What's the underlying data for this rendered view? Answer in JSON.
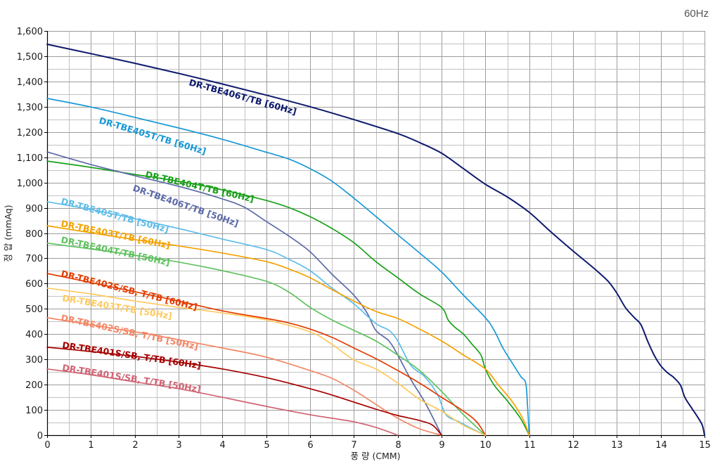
{
  "chart_data": {
    "type": "line",
    "title": "60Hz",
    "xlabel": "풍 량 (CMM)",
    "ylabel": "정 압 (mmAq)",
    "xlim": [
      0,
      15
    ],
    "ylim": [
      0,
      1600
    ],
    "grid": true,
    "x_ticks": [
      0,
      1,
      2,
      3,
      4,
      5,
      6,
      7,
      8,
      9,
      10,
      11,
      12,
      13,
      14,
      15
    ],
    "x_tick_labels": [
      "0",
      "1",
      "2",
      "3",
      "4",
      "5",
      "6",
      "7",
      "8",
      "9",
      "10",
      "11",
      "12",
      "13",
      "14",
      "15"
    ],
    "y_ticks": [
      0,
      100,
      200,
      300,
      400,
      500,
      600,
      700,
      800,
      900,
      1000,
      1100,
      1200,
      1300,
      1400,
      1500,
      1600
    ],
    "y_tick_labels": [
      "0",
      "100",
      "200",
      "300",
      "400",
      "500",
      "600",
      "700",
      "800",
      "900",
      "1,000",
      "1,100",
      "1,200",
      "1,300",
      "1,400",
      "1,500",
      "1,600"
    ],
    "series": [
      {
        "name": "DR-TBE406T/TB [60Hz]",
        "color": "#0d1a6d",
        "points": [
          [
            0,
            1547
          ],
          [
            1,
            1510
          ],
          [
            2,
            1472
          ],
          [
            3,
            1432
          ],
          [
            4,
            1390
          ],
          [
            5,
            1346
          ],
          [
            6,
            1300
          ],
          [
            7,
            1249
          ],
          [
            8,
            1194
          ],
          [
            8.5,
            1158
          ],
          [
            9,
            1116
          ],
          [
            9.5,
            1055
          ],
          [
            10,
            993
          ],
          [
            10.5,
            943
          ],
          [
            11,
            882
          ],
          [
            11.5,
            804
          ],
          [
            12,
            729
          ],
          [
            12.5,
            657
          ],
          [
            12.8,
            609
          ],
          [
            13,
            562
          ],
          [
            13.2,
            504
          ],
          [
            13.4,
            465
          ],
          [
            13.55,
            437
          ],
          [
            13.7,
            373
          ],
          [
            13.85,
            317
          ],
          [
            14,
            275
          ],
          [
            14.15,
            248
          ],
          [
            14.3,
            228
          ],
          [
            14.45,
            198
          ],
          [
            14.55,
            150
          ],
          [
            14.7,
            109
          ],
          [
            14.85,
            70
          ],
          [
            14.95,
            39
          ],
          [
            15,
            0
          ]
        ]
      },
      {
        "name": "DR-TBE405T/TB [60Hz]",
        "color": "#1899d6",
        "points": [
          [
            0,
            1333
          ],
          [
            1,
            1299
          ],
          [
            2,
            1258
          ],
          [
            3,
            1216
          ],
          [
            4,
            1171
          ],
          [
            5,
            1120
          ],
          [
            5.5,
            1094
          ],
          [
            6,
            1055
          ],
          [
            6.5,
            1005
          ],
          [
            7,
            938
          ],
          [
            7.5,
            866
          ],
          [
            8,
            793
          ],
          [
            8.5,
            721
          ],
          [
            9,
            646
          ],
          [
            9.5,
            554
          ],
          [
            10,
            465
          ],
          [
            10.2,
            415
          ],
          [
            10.4,
            345
          ],
          [
            10.6,
            289
          ],
          [
            10.8,
            234
          ],
          [
            10.92,
            206
          ],
          [
            10.96,
            120
          ],
          [
            11,
            0
          ]
        ]
      },
      {
        "name": "DR-TBE404T/TB [60Hz]",
        "color": "#18a018",
        "points": [
          [
            0,
            1085
          ],
          [
            1,
            1060
          ],
          [
            2,
            1032
          ],
          [
            3,
            1005
          ],
          [
            4,
            971
          ],
          [
            5,
            929
          ],
          [
            5.5,
            902
          ],
          [
            6,
            865
          ],
          [
            6.5,
            818
          ],
          [
            7,
            762
          ],
          [
            7.5,
            687
          ],
          [
            8,
            623
          ],
          [
            8.5,
            559
          ],
          [
            9,
            506
          ],
          [
            9.15,
            456
          ],
          [
            9.3,
            428
          ],
          [
            9.5,
            400
          ],
          [
            9.7,
            359
          ],
          [
            9.9,
            317
          ],
          [
            10,
            262
          ],
          [
            10.2,
            198
          ],
          [
            10.5,
            136
          ],
          [
            10.8,
            67
          ],
          [
            11,
            0
          ]
        ]
      },
      {
        "name": "DR-TBE406T/TB [50Hz]",
        "color": "#5c6aa8",
        "points": [
          [
            0,
            1121
          ],
          [
            1,
            1071
          ],
          [
            2,
            1027
          ],
          [
            3,
            985
          ],
          [
            4,
            935
          ],
          [
            4.5,
            902
          ],
          [
            5,
            846
          ],
          [
            5.5,
            790
          ],
          [
            6,
            726
          ],
          [
            6.5,
            637
          ],
          [
            7,
            554
          ],
          [
            7.3,
            484
          ],
          [
            7.5,
            415
          ],
          [
            7.8,
            373
          ],
          [
            8,
            317
          ],
          [
            8.3,
            220
          ],
          [
            8.6,
            136
          ],
          [
            8.85,
            53
          ],
          [
            9,
            0
          ]
        ]
      },
      {
        "name": "DR-TBE405T/TB [50Hz]",
        "color": "#5dbde9",
        "points": [
          [
            0,
            924
          ],
          [
            1,
            893
          ],
          [
            2,
            857
          ],
          [
            3,
            818
          ],
          [
            4,
            776
          ],
          [
            5,
            735
          ],
          [
            5.5,
            698
          ],
          [
            6,
            651
          ],
          [
            6.5,
            582
          ],
          [
            7,
            520
          ],
          [
            7.5,
            442
          ],
          [
            7.8,
            415
          ],
          [
            8,
            373
          ],
          [
            8.3,
            276
          ],
          [
            8.6,
            234
          ],
          [
            8.9,
            164
          ],
          [
            9.1,
            81
          ],
          [
            9.4,
            53
          ],
          [
            9.7,
            25
          ],
          [
            10,
            0
          ]
        ]
      },
      {
        "name": "DR-TBE403T/TB [60Hz]",
        "color": "#f5a200",
        "points": [
          [
            0,
            829
          ],
          [
            1,
            801
          ],
          [
            2,
            774
          ],
          [
            3,
            749
          ],
          [
            4,
            721
          ],
          [
            5,
            687
          ],
          [
            5.5,
            659
          ],
          [
            6,
            623
          ],
          [
            6.5,
            576
          ],
          [
            7,
            531
          ],
          [
            7.5,
            490
          ],
          [
            8,
            462
          ],
          [
            8.5,
            420
          ],
          [
            9,
            373
          ],
          [
            9.5,
            317
          ],
          [
            10,
            262
          ],
          [
            10.3,
            198
          ],
          [
            10.6,
            136
          ],
          [
            10.85,
            67
          ],
          [
            11,
            0
          ]
        ]
      },
      {
        "name": "DR-TBE404T/TB [50Hz]",
        "color": "#5fc15f",
        "points": [
          [
            0,
            760
          ],
          [
            1,
            737
          ],
          [
            2,
            712
          ],
          [
            3,
            685
          ],
          [
            4,
            651
          ],
          [
            5,
            609
          ],
          [
            5.5,
            568
          ],
          [
            6,
            506
          ],
          [
            6.5,
            456
          ],
          [
            7,
            415
          ],
          [
            7.5,
            373
          ],
          [
            8,
            317
          ],
          [
            8.5,
            256
          ],
          [
            9,
            173
          ],
          [
            9.5,
            81
          ],
          [
            10,
            0
          ]
        ]
      },
      {
        "name": "DR-TBE402S/SB, T/TB [60Hz]",
        "color": "#e23c00",
        "points": [
          [
            0,
            640
          ],
          [
            1,
            604
          ],
          [
            2,
            568
          ],
          [
            3,
            531
          ],
          [
            4,
            492
          ],
          [
            5,
            462
          ],
          [
            5.5,
            445
          ],
          [
            6,
            420
          ],
          [
            6.5,
            387
          ],
          [
            7,
            345
          ],
          [
            7.5,
            303
          ],
          [
            8,
            256
          ],
          [
            8.5,
            206
          ],
          [
            9,
            150
          ],
          [
            9.5,
            95
          ],
          [
            9.8,
            53
          ],
          [
            10,
            0
          ]
        ]
      },
      {
        "name": "DR-TBE403T/TB [50Hz]",
        "color": "#ffc95f",
        "points": [
          [
            0,
            582
          ],
          [
            1,
            559
          ],
          [
            2,
            531
          ],
          [
            3,
            506
          ],
          [
            4,
            484
          ],
          [
            5,
            456
          ],
          [
            6,
            409
          ],
          [
            6.5,
            359
          ],
          [
            7,
            298
          ],
          [
            7.5,
            262
          ],
          [
            8,
            206
          ],
          [
            8.5,
            142
          ],
          [
            9,
            95
          ],
          [
            9.5,
            39
          ],
          [
            10,
            0
          ]
        ]
      },
      {
        "name": "DR-TBE402S/SB, T/TB [50Hz]",
        "color": "#f38766",
        "points": [
          [
            0,
            465
          ],
          [
            1,
            437
          ],
          [
            2,
            409
          ],
          [
            3,
            378
          ],
          [
            4,
            345
          ],
          [
            5,
            309
          ],
          [
            6,
            256
          ],
          [
            6.5,
            225
          ],
          [
            7,
            178
          ],
          [
            7.5,
            122
          ],
          [
            8,
            67
          ],
          [
            8.5,
            25
          ],
          [
            9,
            0
          ]
        ]
      },
      {
        "name": "DR-TBE401S/SB, T/TB [60Hz]",
        "color": "#a50000",
        "points": [
          [
            0,
            348
          ],
          [
            1,
            331
          ],
          [
            2,
            312
          ],
          [
            3,
            289
          ],
          [
            4,
            262
          ],
          [
            5,
            228
          ],
          [
            6,
            184
          ],
          [
            6.5,
            159
          ],
          [
            7,
            131
          ],
          [
            7.5,
            103
          ],
          [
            8,
            78
          ],
          [
            8.5,
            58
          ],
          [
            8.8,
            39
          ],
          [
            9,
            0
          ]
        ]
      },
      {
        "name": "DR-TBE401S/SB, T/TB [50Hz]",
        "color": "#d06474",
        "points": [
          [
            0,
            262
          ],
          [
            1,
            239
          ],
          [
            2,
            211
          ],
          [
            3,
            184
          ],
          [
            4,
            150
          ],
          [
            5,
            114
          ],
          [
            6,
            81
          ],
          [
            6.5,
            67
          ],
          [
            7,
            53
          ],
          [
            7.5,
            31
          ],
          [
            8,
            0
          ]
        ]
      }
    ]
  }
}
